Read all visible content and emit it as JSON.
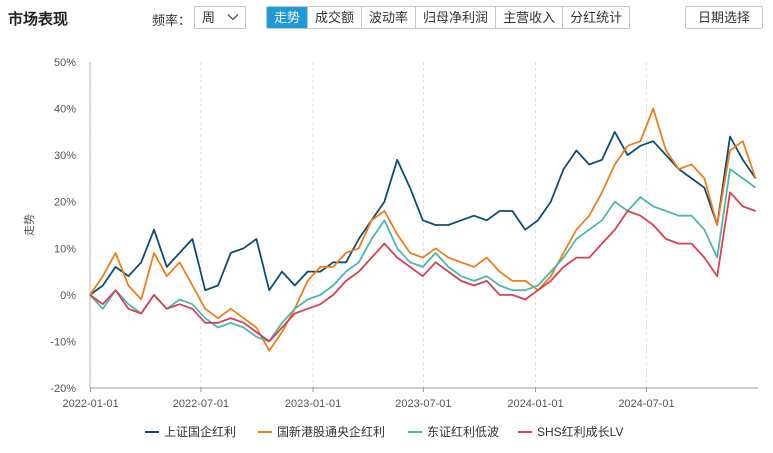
{
  "header": {
    "title": "市场表现",
    "freq_label": "频率：",
    "freq_value": "周",
    "tabs": [
      {
        "label": "走势",
        "active": true
      },
      {
        "label": "成交额",
        "active": false
      },
      {
        "label": "波动率",
        "active": false
      },
      {
        "label": "归母净利润",
        "active": false
      },
      {
        "label": "主营收入",
        "active": false
      },
      {
        "label": "分红统计",
        "active": false
      }
    ],
    "date_button": "日期选择"
  },
  "colors": {
    "accent": "#1e9ad6",
    "series": [
      "#0e4d72",
      "#f07d1a",
      "#4ab7b0",
      "#d94050"
    ]
  },
  "chart_data": {
    "type": "line",
    "ylabel": "走势",
    "xlabel": "",
    "ylim": [
      -20,
      50
    ],
    "yticks": [
      -20,
      -10,
      0,
      10,
      20,
      30,
      40,
      50
    ],
    "ytick_labels": [
      "-20%",
      "-10%",
      "0%",
      "10%",
      "20%",
      "30%",
      "40%",
      "50%"
    ],
    "xlim": [
      "2021-12-31",
      "2024-12-31"
    ],
    "xticks": [
      "2022-01-01",
      "2022-07-01",
      "2023-01-01",
      "2023-07-01",
      "2024-01-01",
      "2024-07-01"
    ],
    "grid": "vertical-dashed",
    "legend_position": "bottom",
    "x": [
      "2021-12-31",
      "2022-01-21",
      "2022-02-11",
      "2022-03-04",
      "2022-03-25",
      "2022-04-15",
      "2022-05-06",
      "2022-05-27",
      "2022-06-17",
      "2022-07-08",
      "2022-07-29",
      "2022-08-19",
      "2022-09-09",
      "2022-09-30",
      "2022-10-21",
      "2022-11-11",
      "2022-12-02",
      "2022-12-23",
      "2023-01-13",
      "2023-02-03",
      "2023-02-24",
      "2023-03-17",
      "2023-04-07",
      "2023-04-28",
      "2023-05-19",
      "2023-06-09",
      "2023-06-30",
      "2023-07-21",
      "2023-08-11",
      "2023-09-01",
      "2023-09-22",
      "2023-10-13",
      "2023-11-03",
      "2023-11-24",
      "2023-12-15",
      "2024-01-05",
      "2024-01-26",
      "2024-02-16",
      "2024-03-08",
      "2024-03-29",
      "2024-04-19",
      "2024-05-10",
      "2024-05-31",
      "2024-06-21",
      "2024-07-12",
      "2024-08-02",
      "2024-08-23",
      "2024-09-13",
      "2024-10-04",
      "2024-10-25",
      "2024-11-15",
      "2024-12-06",
      "2024-12-27"
    ],
    "series": [
      {
        "name": "上证国企红利",
        "values": [
          0,
          2,
          6,
          4,
          7,
          14,
          6,
          9,
          12,
          1,
          2,
          9,
          10,
          12,
          1,
          5,
          2,
          5,
          5,
          7,
          7,
          12,
          16,
          20,
          29,
          23,
          16,
          15,
          15,
          16,
          17,
          16,
          18,
          18,
          14,
          16,
          20,
          27,
          31,
          28,
          29,
          35,
          30,
          32,
          33,
          30,
          27,
          25,
          23,
          15,
          34,
          29,
          25
        ]
      },
      {
        "name": "国新港股通央企红利",
        "values": [
          0,
          4,
          9,
          2,
          -1,
          9,
          4,
          7,
          2,
          -3,
          -5,
          -3,
          -5,
          -7,
          -12,
          -8,
          -3,
          3,
          6,
          6,
          9,
          10,
          16,
          18,
          13,
          9,
          8,
          10,
          8,
          7,
          6,
          8,
          5,
          3,
          3,
          1,
          4,
          9,
          14,
          17,
          22,
          28,
          32,
          33,
          40,
          31,
          27,
          28,
          25,
          15,
          31,
          33,
          25
        ]
      },
      {
        "name": "东证红利低波",
        "values": [
          0,
          -3,
          1,
          -2,
          -4,
          0,
          -3,
          -1,
          -2,
          -5,
          -7,
          -6,
          -7,
          -9,
          -10,
          -6,
          -3,
          -1,
          0,
          2,
          5,
          7,
          12,
          16,
          10,
          7,
          6,
          9,
          6,
          4,
          3,
          4,
          2,
          1,
          1,
          2,
          5,
          8,
          12,
          14,
          16,
          20,
          18,
          21,
          19,
          18,
          17,
          17,
          14,
          8,
          27,
          25,
          23
        ]
      },
      {
        "name": "SHS红利成长LV",
        "values": [
          0,
          -2,
          1,
          -3,
          -4,
          0,
          -3,
          -2,
          -3,
          -6,
          -6,
          -5,
          -6,
          -8,
          -10,
          -7,
          -4,
          -3,
          -2,
          0,
          3,
          5,
          8,
          11,
          8,
          6,
          4,
          7,
          5,
          3,
          2,
          3,
          0,
          0,
          -1,
          1,
          3,
          6,
          8,
          8,
          11,
          14,
          18,
          17,
          15,
          12,
          11,
          11,
          8,
          4,
          22,
          19,
          18
        ]
      }
    ]
  }
}
